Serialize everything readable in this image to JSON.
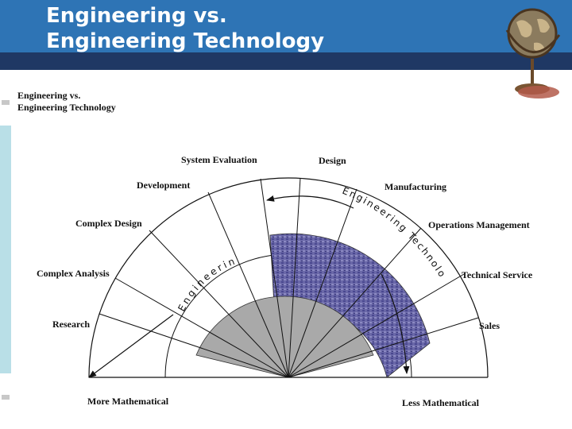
{
  "header": {
    "title_line1": "Engineering vs.",
    "title_line2": "Engineering Technology"
  },
  "image": {
    "subtitle_line1": "Engineering vs.",
    "subtitle_line2": "Engineering Technology"
  },
  "diagram": {
    "function_labels": {
      "system_evaluation": "System Evaluation",
      "design": "Design",
      "development": "Development",
      "manufacturing": "Manufacturing",
      "complex_design": "Complex Design",
      "operations_management": "Operations Management",
      "complex_analysis": "Complex Analysis",
      "technical_service": "Technical Service",
      "research": "Research",
      "sales": "Sales"
    },
    "arc_labels": {
      "engineering": "Engineering",
      "engineering_technology": "Engineering Technology"
    },
    "axis_labels": {
      "more_mathematical": "More Mathematical",
      "less_mathematical": "Less Mathematical"
    }
  },
  "colors": {
    "header": "#2e74b5",
    "header_band": "#1f3864",
    "engineering_technology_region": "#6a68a8",
    "engineering_region": "#a9a9a9",
    "left_bar": "#b9dfe7"
  }
}
